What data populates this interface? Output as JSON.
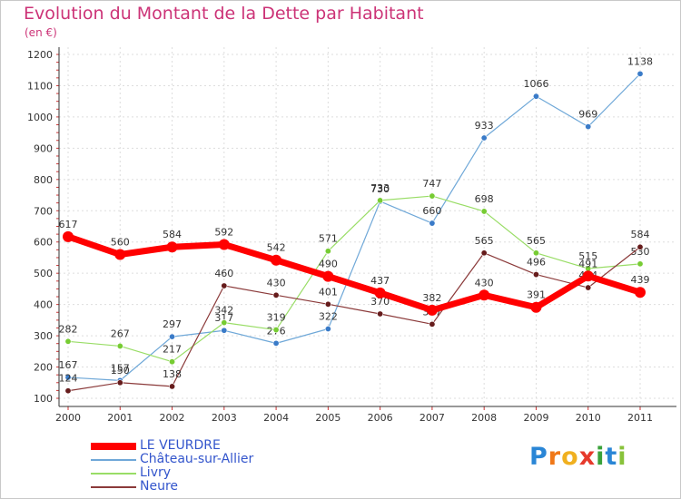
{
  "chart_data": {
    "type": "line",
    "title": "Evolution du Montant de la Dette par Habitant",
    "subtitle": "(en €)",
    "categories": [
      "2000",
      "2001",
      "2002",
      "2003",
      "2004",
      "2005",
      "2006",
      "2007",
      "2008",
      "2009",
      "2010",
      "2011"
    ],
    "ylim": [
      100,
      1200
    ],
    "yticks": [
      100,
      200,
      300,
      400,
      500,
      600,
      700,
      800,
      900,
      1000,
      1100,
      1200
    ],
    "grid": true,
    "legend_position": "bottom-left",
    "series": [
      {
        "name": "Château-sur-Allier",
        "color": "#6fa8d8",
        "point_color": "#3a7bc8",
        "width": 1.2,
        "values": [
          167,
          157,
          297,
          317,
          276,
          322,
          730,
          660,
          933,
          1066,
          969,
          1138
        ]
      },
      {
        "name": "Livry",
        "color": "#99dd66",
        "point_color": "#77cc33",
        "width": 1.2,
        "values": [
          282,
          267,
          217,
          342,
          319,
          571,
          733,
          747,
          698,
          565,
          515,
          530
        ]
      },
      {
        "name": "Neure",
        "color": "#8b3a3a",
        "point_color": "#661c1c",
        "width": 1.2,
        "values": [
          124,
          150,
          138,
          460,
          430,
          401,
          370,
          337,
          565,
          496,
          454,
          584
        ]
      },
      {
        "name": "LE VEURDRE",
        "color": "#ff0000",
        "point_color": "#ff0000",
        "width": 7,
        "values": [
          617,
          560,
          584,
          592,
          542,
          490,
          437,
          382,
          430,
          391,
          491,
          439
        ]
      }
    ]
  },
  "legend": {
    "items": [
      {
        "label": "LE VEURDRE",
        "color": "#ff0000",
        "thick": true
      },
      {
        "label": "Château-sur-Allier",
        "color": "#6fa8d8",
        "thick": false
      },
      {
        "label": "Livry",
        "color": "#99dd66",
        "thick": false
      },
      {
        "label": "Neure",
        "color": "#8b3a3a",
        "thick": false
      }
    ]
  },
  "logo": {
    "p": "P",
    "r": "r",
    "o": "o",
    "x": "x",
    "i": "i",
    "t": "t",
    "i2": "i"
  }
}
